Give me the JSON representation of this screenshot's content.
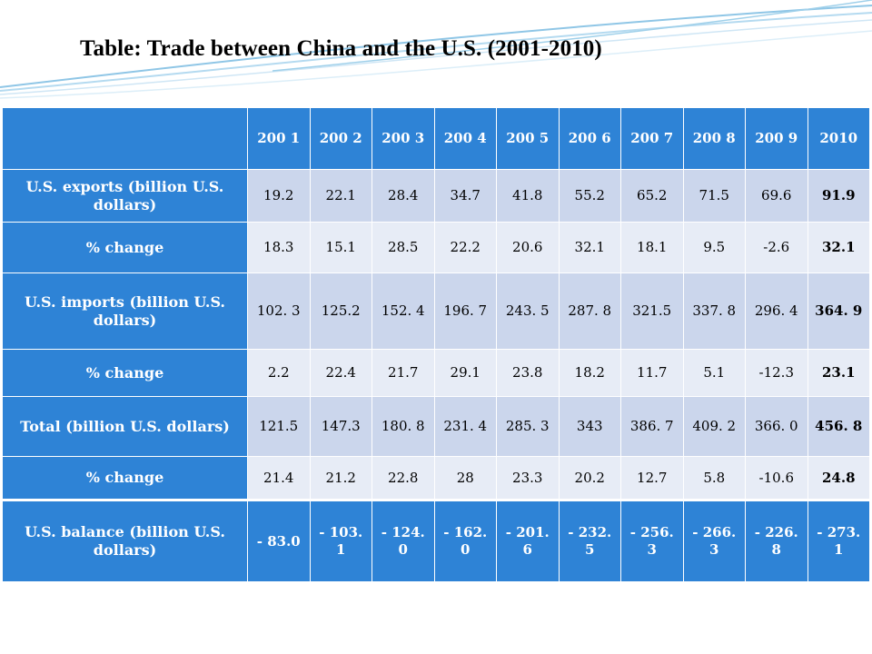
{
  "title": "Table: Trade between China and the U.S. (2001-2010)",
  "table": {
    "years": [
      "200 1",
      "200 2",
      "200 3",
      "200 4",
      "200 5",
      "200 6",
      "200 7",
      "200 8",
      "200 9",
      "2010"
    ],
    "rows": [
      {
        "label": "U.S. exports (billion U.S. dollars)",
        "values": [
          "19.2",
          "22.1",
          "28.4",
          "34.7",
          "41.8",
          "55.2",
          "65.2",
          "71.5",
          "69.6",
          "91.9"
        ]
      },
      {
        "label": "% change",
        "values": [
          "18.3",
          "15.1",
          "28.5",
          "22.2",
          "20.6",
          "32.1",
          "18.1",
          "9.5",
          "-2.6",
          "32.1"
        ]
      },
      {
        "label": "U.S. imports (billion U.S. dollars)",
        "values": [
          "102. 3",
          "125.2",
          "152. 4",
          "196. 7",
          "243. 5",
          "287. 8",
          "321.5",
          "337. 8",
          "296. 4",
          "364. 9"
        ]
      },
      {
        "label": "% change",
        "values": [
          "2.2",
          "22.4",
          "21.7",
          "29.1",
          "23.8",
          "18.2",
          "11.7",
          "5.1",
          "-12.3",
          "23.1"
        ]
      },
      {
        "label": "Total (billion U.S. dollars)",
        "values": [
          "121.5",
          "147.3",
          "180. 8",
          "231. 4",
          "285. 3",
          "343",
          "386. 7",
          "409. 2",
          "366. 0",
          "456. 8"
        ]
      },
      {
        "label": "% change",
        "values": [
          "21.4",
          "21.2",
          "22.8",
          "28",
          "23.3",
          "20.2",
          "12.7",
          "5.8",
          "-10.6",
          "24.8"
        ]
      },
      {
        "label": "U.S. balance (billion U.S. dollars)",
        "values": [
          "- 83.0",
          "- 103. 1",
          "- 124. 0",
          "- 162. 0",
          "- 201. 6",
          "- 232. 5",
          "- 256. 3",
          "- 266. 3",
          "- 226. 8",
          "- 273. 1"
        ]
      }
    ]
  },
  "colors": {
    "header": "#2e83d6",
    "band_dark": "#cbd6ec",
    "band_light": "#e7ecf6",
    "balance_row": "#2e83d6"
  }
}
